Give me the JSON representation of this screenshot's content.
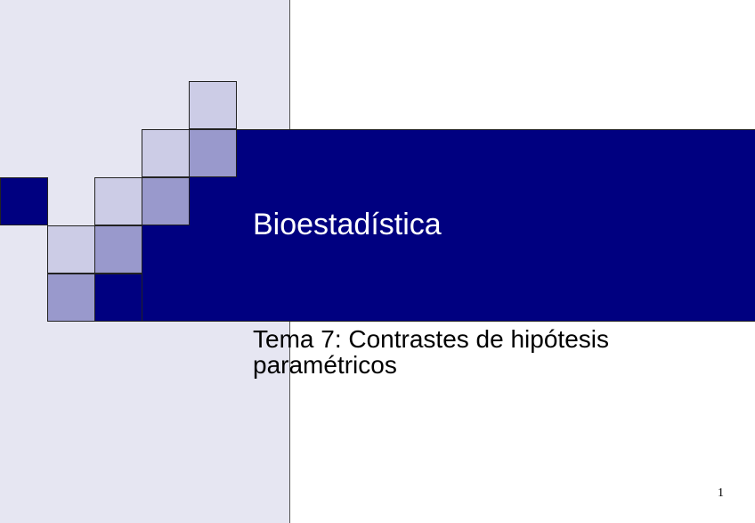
{
  "slide": {
    "title": "Bioestadística",
    "subtitle": "Tema 7: Contrastes de hipótesis paramétricos",
    "page_number": "1"
  },
  "colors": {
    "dark_blue": "#000080",
    "mid_blue": "#9999cc",
    "light_blue": "#ccccE6",
    "panel": "#e6e6f2"
  }
}
